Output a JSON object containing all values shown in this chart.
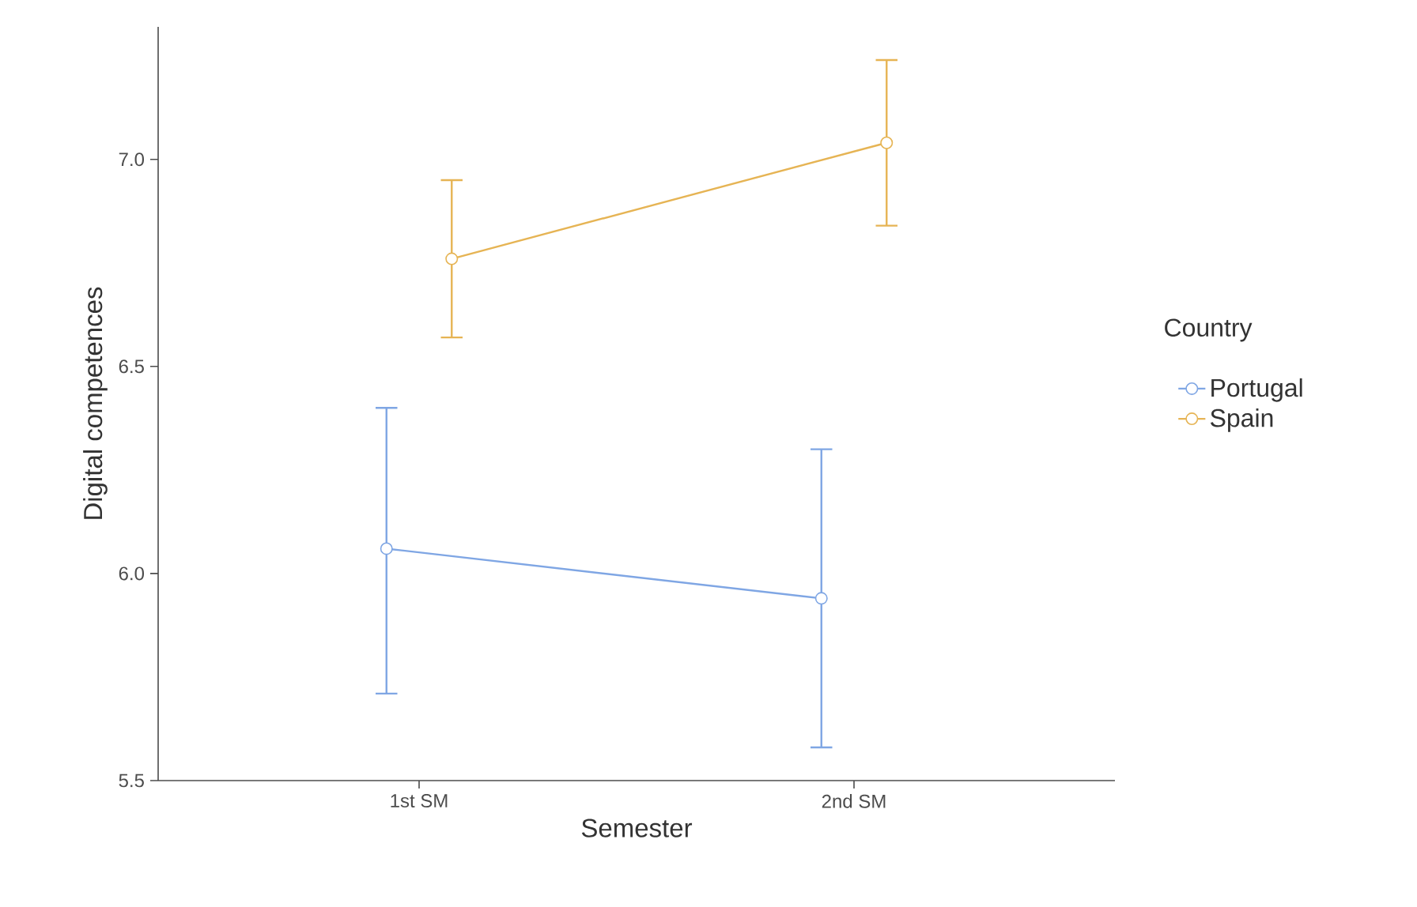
{
  "chart_data": {
    "type": "line",
    "xlabel": "Semester",
    "ylabel": "Digital competences",
    "legend_title": "Country",
    "categories": [
      "1st SM",
      "2nd SM"
    ],
    "series": [
      {
        "name": "Portugal",
        "color": "#7fa6e4",
        "values": [
          6.06,
          5.94
        ],
        "errors": [
          [
            5.71,
            6.4
          ],
          [
            5.58,
            6.3
          ]
        ]
      },
      {
        "name": "Spain",
        "color": "#e6b454",
        "values": [
          6.76,
          7.04
        ],
        "errors": [
          [
            6.57,
            6.95
          ],
          [
            6.84,
            7.24
          ]
        ]
      }
    ],
    "ylim": [
      5.5,
      7.32
    ],
    "yticks": [
      {
        "value": 5.5,
        "label": "5.5"
      },
      {
        "value": 6.0,
        "label": "6.0"
      },
      {
        "value": 6.5,
        "label": "6.5"
      },
      {
        "value": 7.0,
        "label": "7.0"
      }
    ],
    "grid": false,
    "legend": "right",
    "marker": "circle",
    "line_style": "solid"
  }
}
